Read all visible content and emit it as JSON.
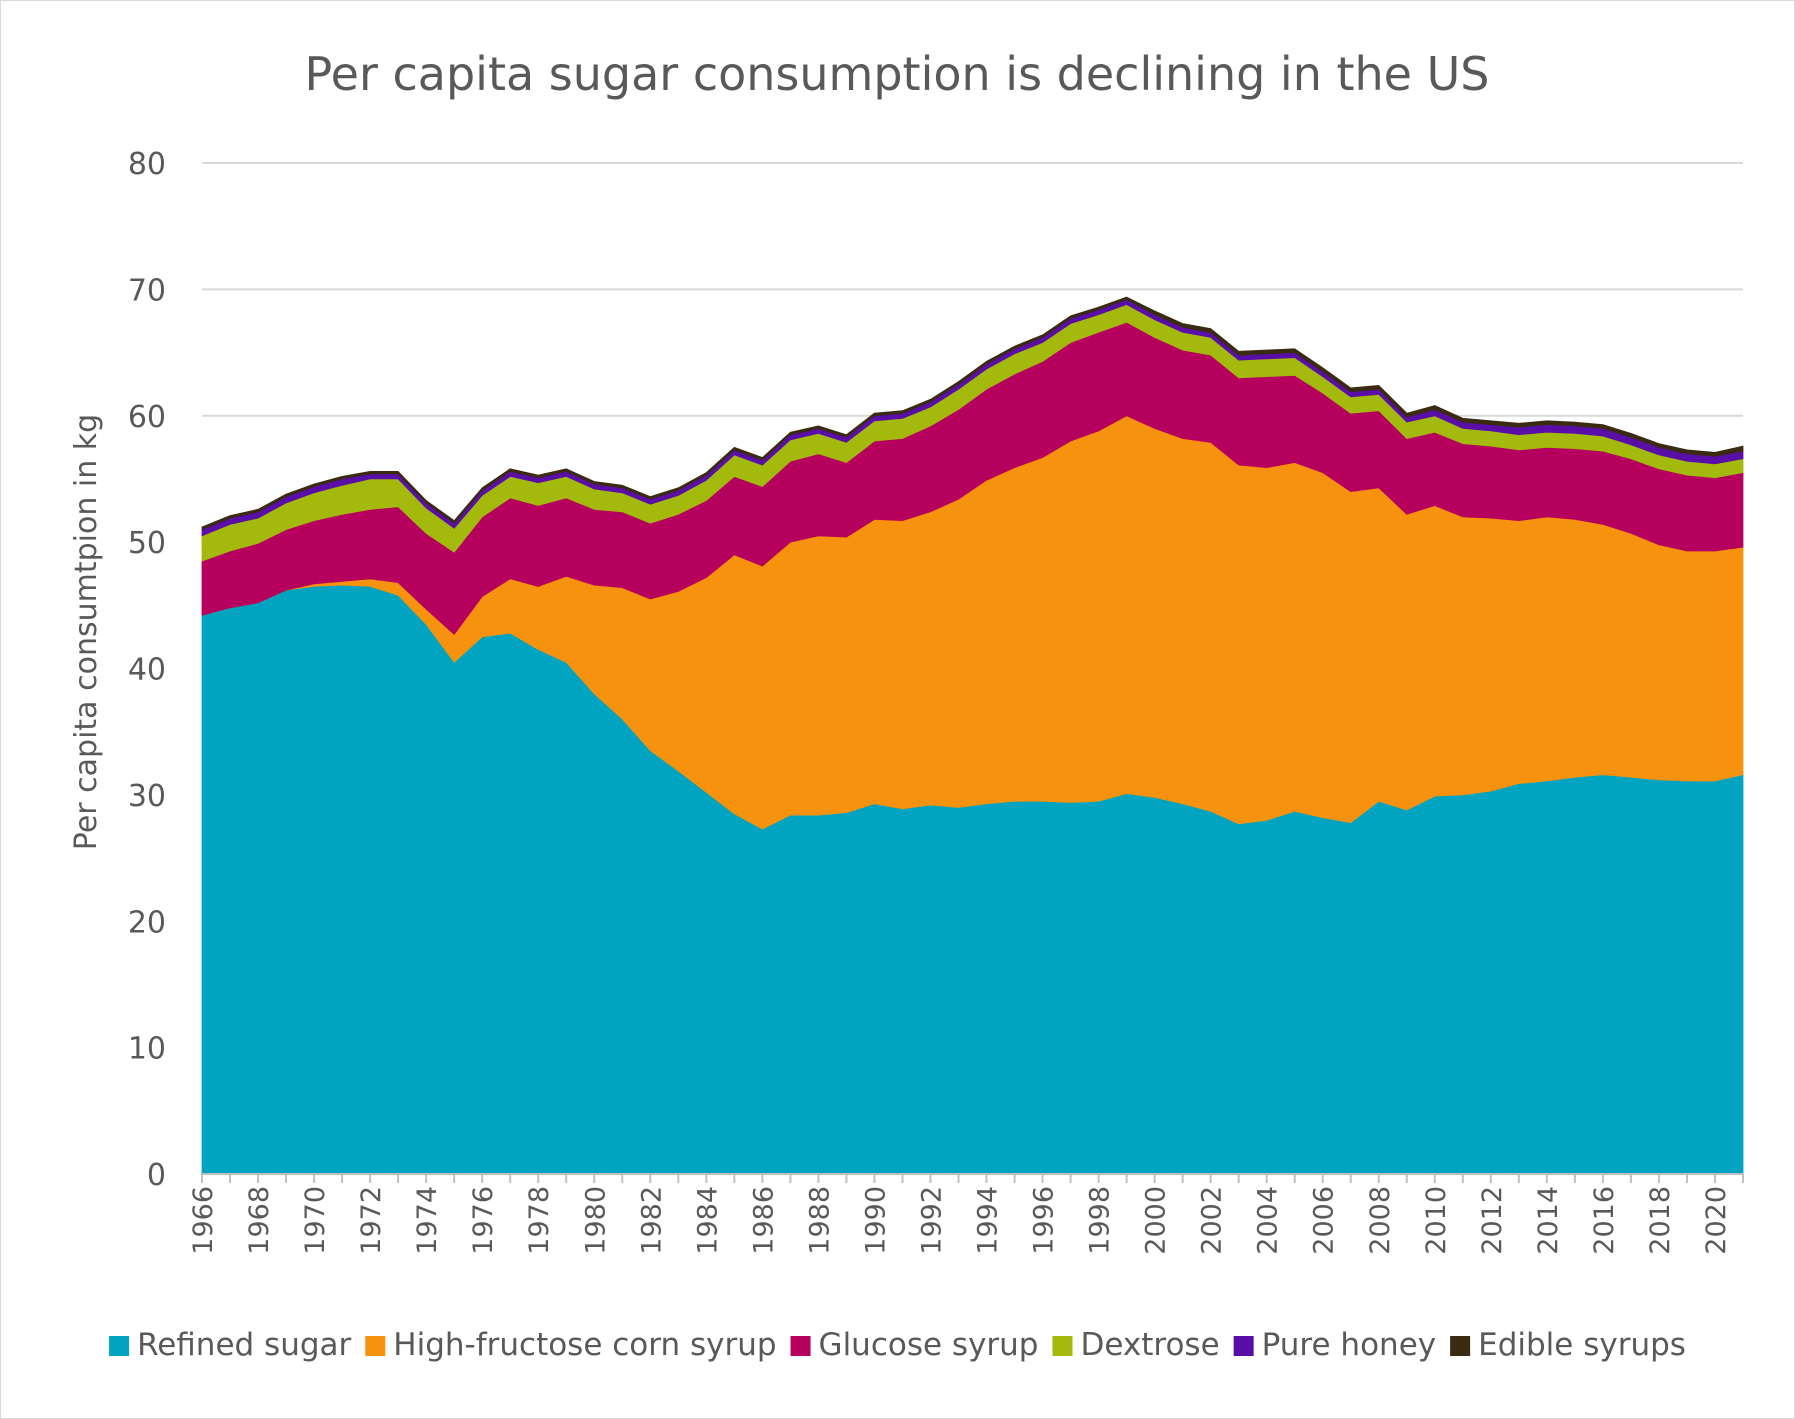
{
  "chart_data": {
    "type": "area",
    "stacked": true,
    "title": "Per capita sugar consumption is declining in the US",
    "ylabel": "Per capita consumtpion in kg",
    "xlabel": "",
    "ylim": [
      0,
      80
    ],
    "yticks": [
      0,
      10,
      20,
      30,
      40,
      50,
      60,
      70,
      80
    ],
    "x": [
      1966,
      1967,
      1968,
      1969,
      1970,
      1971,
      1972,
      1973,
      1974,
      1975,
      1976,
      1977,
      1978,
      1979,
      1980,
      1981,
      1982,
      1983,
      1984,
      1985,
      1986,
      1987,
      1988,
      1989,
      1990,
      1991,
      1992,
      1993,
      1994,
      1995,
      1996,
      1997,
      1998,
      1999,
      2000,
      2001,
      2002,
      2003,
      2004,
      2005,
      2006,
      2007,
      2008,
      2009,
      2010,
      2011,
      2012,
      2013,
      2014,
      2015,
      2016,
      2017,
      2018,
      2019,
      2020,
      2021
    ],
    "xticks": [
      "1966",
      "1968",
      "1970",
      "1972",
      "1974",
      "1976",
      "1978",
      "1980",
      "1982",
      "1984",
      "1986",
      "1988",
      "1990",
      "1992",
      "1994",
      "1996",
      "1998",
      "2000",
      "2002",
      "2004",
      "2006",
      "2008",
      "2010",
      "2012",
      "2014",
      "2016",
      "2018",
      "2020"
    ],
    "grid": true,
    "legend_position": "bottom",
    "series": [
      {
        "name": "Refined sugar",
        "color": "#00a3c0",
        "values": [
          44.2,
          44.8,
          45.2,
          46.2,
          46.5,
          46.6,
          46.5,
          45.8,
          43.5,
          40.5,
          42.5,
          42.8,
          41.5,
          40.5,
          38.0,
          36.0,
          33.5,
          31.9,
          30.2,
          28.5,
          27.3,
          28.4,
          28.4,
          28.6,
          29.3,
          28.9,
          29.2,
          29.0,
          29.3,
          29.5,
          29.5,
          29.4,
          29.5,
          30.1,
          29.8,
          29.3,
          28.7,
          27.7,
          28.0,
          28.7,
          28.2,
          27.8,
          29.5,
          28.8,
          29.9,
          30.0,
          30.3,
          30.9,
          31.1,
          31.4,
          31.6,
          31.4,
          31.2,
          31.1,
          31.1,
          31.6
        ]
      },
      {
        "name": "High-fructose corn syrup",
        "color": "#f7920e",
        "values": [
          0,
          0,
          0,
          0,
          0.2,
          0.3,
          0.6,
          1.0,
          1.2,
          2.2,
          3.2,
          4.3,
          5.0,
          6.8,
          8.6,
          10.4,
          12.0,
          14.2,
          17.0,
          20.5,
          20.8,
          21.6,
          22.1,
          21.8,
          22.5,
          22.8,
          23.2,
          24.4,
          25.6,
          26.4,
          27.2,
          28.6,
          29.3,
          29.9,
          29.2,
          28.9,
          29.2,
          28.4,
          27.9,
          27.6,
          27.3,
          26.2,
          24.8,
          23.4,
          23.0,
          22.0,
          21.6,
          20.8,
          20.9,
          20.4,
          19.8,
          19.3,
          18.6,
          18.2,
          18.2,
          18.0
        ]
      },
      {
        "name": "Glucose syrup",
        "color": "#b5005e",
        "values": [
          4.3,
          4.5,
          4.7,
          4.8,
          5.0,
          5.3,
          5.5,
          6.0,
          6.0,
          6.5,
          6.3,
          6.4,
          6.4,
          6.2,
          6.0,
          6.0,
          6.0,
          6.1,
          6.1,
          6.2,
          6.3,
          6.4,
          6.5,
          5.9,
          6.2,
          6.5,
          6.8,
          7.1,
          7.2,
          7.4,
          7.6,
          7.8,
          7.8,
          7.4,
          7.2,
          7.0,
          6.9,
          6.9,
          7.2,
          6.9,
          6.3,
          6.2,
          6.1,
          6.0,
          5.8,
          5.8,
          5.7,
          5.6,
          5.5,
          5.6,
          5.8,
          5.9,
          6.0,
          6.0,
          5.8,
          5.9
        ]
      },
      {
        "name": "Dextrose",
        "color": "#a3b90c",
        "values": [
          2.0,
          2.1,
          2.0,
          2.1,
          2.2,
          2.3,
          2.4,
          2.2,
          2.0,
          1.9,
          1.7,
          1.7,
          1.8,
          1.7,
          1.6,
          1.5,
          1.5,
          1.5,
          1.6,
          1.7,
          1.7,
          1.7,
          1.6,
          1.6,
          1.6,
          1.6,
          1.5,
          1.6,
          1.6,
          1.6,
          1.5,
          1.5,
          1.4,
          1.4,
          1.4,
          1.4,
          1.4,
          1.4,
          1.4,
          1.4,
          1.3,
          1.3,
          1.3,
          1.3,
          1.3,
          1.2,
          1.2,
          1.2,
          1.2,
          1.2,
          1.2,
          1.1,
          1.1,
          1.1,
          1.1,
          1.1
        ]
      },
      {
        "name": "Pure honey",
        "color": "#5a0ea8",
        "values": [
          0.5,
          0.5,
          0.5,
          0.5,
          0.5,
          0.5,
          0.4,
          0.4,
          0.4,
          0.4,
          0.4,
          0.4,
          0.4,
          0.4,
          0.4,
          0.4,
          0.4,
          0.4,
          0.4,
          0.4,
          0.4,
          0.4,
          0.4,
          0.4,
          0.4,
          0.4,
          0.4,
          0.4,
          0.4,
          0.4,
          0.4,
          0.4,
          0.4,
          0.4,
          0.4,
          0.4,
          0.4,
          0.4,
          0.4,
          0.4,
          0.4,
          0.4,
          0.4,
          0.4,
          0.5,
          0.5,
          0.5,
          0.6,
          0.6,
          0.6,
          0.6,
          0.6,
          0.6,
          0.6,
          0.6,
          0.6
        ]
      },
      {
        "name": "Edible syrups",
        "color": "#3a2a10",
        "values": [
          0.2,
          0.2,
          0.2,
          0.2,
          0.2,
          0.2,
          0.2,
          0.2,
          0.2,
          0.2,
          0.2,
          0.2,
          0.2,
          0.2,
          0.2,
          0.2,
          0.2,
          0.2,
          0.2,
          0.2,
          0.2,
          0.2,
          0.2,
          0.2,
          0.2,
          0.2,
          0.2,
          0.2,
          0.2,
          0.2,
          0.2,
          0.2,
          0.2,
          0.2,
          0.3,
          0.3,
          0.3,
          0.3,
          0.3,
          0.3,
          0.3,
          0.3,
          0.3,
          0.3,
          0.3,
          0.3,
          0.3,
          0.3,
          0.3,
          0.3,
          0.3,
          0.3,
          0.3,
          0.3,
          0.3,
          0.4
        ]
      }
    ]
  }
}
